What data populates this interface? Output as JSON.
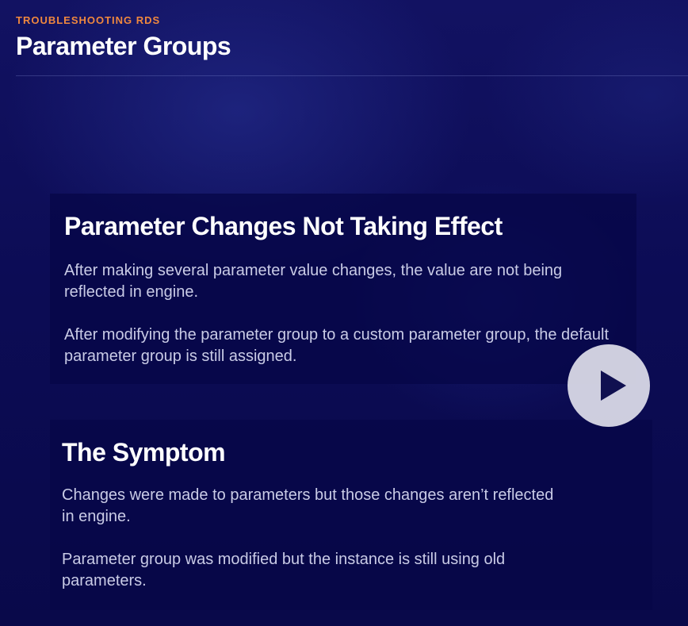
{
  "header": {
    "eyebrow": "TROUBLESHOOTING RDS",
    "title": "Parameter Groups"
  },
  "cards": [
    {
      "title": "Parameter Changes Not Taking Effect",
      "paragraphs": [
        "After making several parameter value changes, the value are not being reflected in engine.",
        "After modifying the parameter group to a custom parameter group, the default parameter group is still assigned."
      ]
    },
    {
      "title": "The Symptom",
      "paragraphs": [
        "Changes were made to parameters but those changes aren’t reflected in engine.",
        "Parameter group was modified but the instance is still using old parameters."
      ]
    }
  ],
  "video": {
    "play_icon": "play-icon",
    "colors": {
      "button_bg": "#dedeea",
      "icon": "#101050"
    }
  },
  "theme": {
    "accent": "#f0883e",
    "background": "#0c0c55",
    "card_bg": "#060648"
  }
}
